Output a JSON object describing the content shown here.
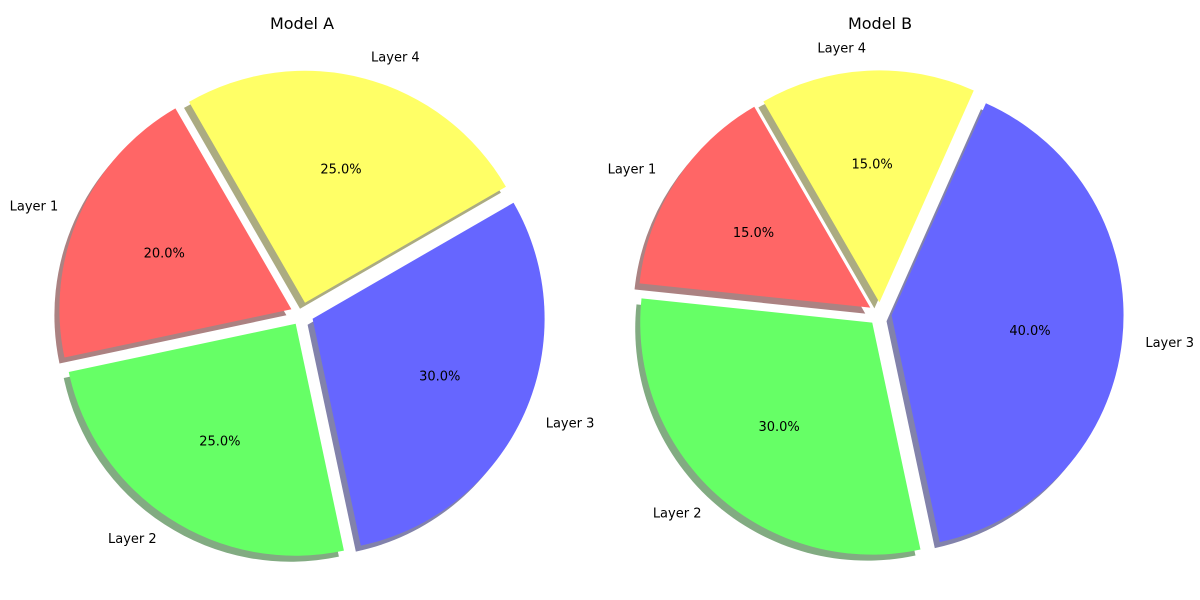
{
  "chart_data": [
    {
      "type": "pie",
      "title": "Model A",
      "categories": [
        "Layer 1",
        "Layer 2",
        "Layer 3",
        "Layer 4"
      ],
      "values": [
        20,
        25,
        30,
        25
      ],
      "autopct": [
        "20.0%",
        "25.0%",
        "30.0%",
        "25.0%"
      ],
      "colors": [
        "#ff6666",
        "#66ff66",
        "#6666ff",
        "#ffff66"
      ],
      "explode": [
        0.05,
        0.05,
        0.05,
        0.05
      ],
      "start_angle_deg": 120,
      "direction": "counterclockwise",
      "shadow": true
    },
    {
      "type": "pie",
      "title": "Model B",
      "categories": [
        "Layer 1",
        "Layer 2",
        "Layer 3",
        "Layer 4"
      ],
      "values": [
        15,
        30,
        40,
        15
      ],
      "autopct": [
        "15.0%",
        "30.0%",
        "40.0%",
        "15.0%"
      ],
      "colors": [
        "#ff6666",
        "#66ff66",
        "#6666ff",
        "#ffff66"
      ],
      "explode": [
        0.05,
        0.05,
        0.05,
        0.05
      ],
      "start_angle_deg": 120,
      "direction": "counterclockwise",
      "shadow": true
    }
  ]
}
